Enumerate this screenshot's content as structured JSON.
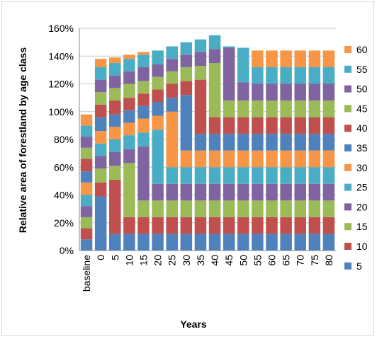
{
  "chart_data": {
    "type": "bar",
    "stacked": true,
    "title": "",
    "xlabel": "Years",
    "ylabel": "Relative area of forestland by age class",
    "ylim": [
      0,
      160
    ],
    "yticks": [
      "0%",
      "20%",
      "40%",
      "60%",
      "80%",
      "100%",
      "120%",
      "140%",
      "160%"
    ],
    "grid": true,
    "legend_position": "right",
    "categories": [
      "baseline",
      "0",
      "5",
      "10",
      "15",
      "20",
      "25",
      "30",
      "35",
      "40",
      "45",
      "50",
      "55",
      "60",
      "65",
      "70",
      "75",
      "80"
    ],
    "series": [
      {
        "name": "5",
        "color": "#4f81bd",
        "values": [
          8,
          39,
          12,
          12,
          12,
          12,
          12,
          12,
          12,
          12,
          12,
          12,
          12,
          12,
          12,
          12,
          12,
          12
        ]
      },
      {
        "name": "10",
        "color": "#c0504d",
        "values": [
          8,
          10,
          39,
          12,
          12,
          12,
          12,
          12,
          12,
          12,
          12,
          12,
          12,
          12,
          12,
          12,
          12,
          12
        ]
      },
      {
        "name": "15",
        "color": "#9bbb59",
        "values": [
          8,
          10,
          10,
          39,
          12,
          12,
          12,
          12,
          12,
          12,
          12,
          12,
          12,
          12,
          12,
          12,
          12,
          12
        ]
      },
      {
        "name": "20",
        "color": "#8064a2",
        "values": [
          8,
          9,
          10,
          10,
          39,
          12,
          12,
          12,
          12,
          12,
          12,
          12,
          12,
          12,
          12,
          12,
          12,
          12
        ]
      },
      {
        "name": "25",
        "color": "#4bacc6",
        "values": [
          8,
          9,
          9,
          10,
          10,
          39,
          12,
          12,
          12,
          12,
          12,
          12,
          12,
          12,
          12,
          12,
          12,
          12
        ]
      },
      {
        "name": "30",
        "color": "#f79646",
        "values": [
          9,
          9,
          9,
          9,
          10,
          10,
          40,
          12,
          12,
          12,
          12,
          12,
          12,
          12,
          12,
          12,
          12,
          12
        ]
      },
      {
        "name": "35",
        "color": "#4f81bd",
        "values": [
          8,
          10,
          9,
          9,
          9,
          10,
          10,
          40,
          12,
          12,
          12,
          12,
          12,
          12,
          12,
          12,
          12,
          12
        ]
      },
      {
        "name": "40",
        "color": "#c0504d",
        "values": [
          9,
          9,
          10,
          9,
          9,
          9,
          10,
          10,
          39,
          12,
          12,
          12,
          12,
          12,
          12,
          12,
          12,
          12
        ]
      },
      {
        "name": "45",
        "color": "#9bbb59",
        "values": [
          8,
          9,
          9,
          10,
          9,
          9,
          9,
          10,
          10,
          39,
          12,
          12,
          12,
          12,
          12,
          12,
          12,
          12
        ]
      },
      {
        "name": "50",
        "color": "#8064a2",
        "values": [
          8,
          9,
          9,
          9,
          10,
          9,
          9,
          9,
          10,
          10,
          38,
          13,
          12,
          12,
          12,
          12,
          12,
          12
        ]
      },
      {
        "name": "55",
        "color": "#4bacc6",
        "values": [
          8,
          9,
          9,
          9,
          9,
          10,
          9,
          9,
          9,
          10,
          1,
          25,
          12,
          12,
          12,
          12,
          12,
          12
        ]
      },
      {
        "name": "60",
        "color": "#f79646",
        "values": [
          8,
          6,
          4,
          3,
          2,
          0,
          0,
          0,
          0,
          0,
          0,
          0,
          12,
          12,
          12,
          12,
          12,
          12
        ]
      }
    ]
  }
}
